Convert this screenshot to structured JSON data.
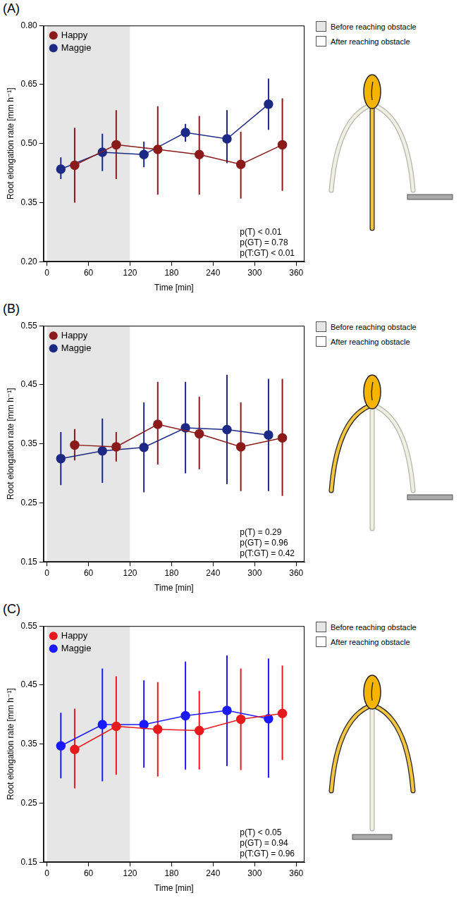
{
  "chart_data": [
    {
      "type": "line",
      "panel": "(A)",
      "x_label": "Time [min]",
      "y_label": "Root elongation rate [mm h⁻¹]",
      "xlim": [
        -5,
        372
      ],
      "xticks": [
        0,
        60,
        120,
        180,
        240,
        300,
        360
      ],
      "ylim": [
        0.2,
        0.8
      ],
      "yticks": [
        {
          "value": 0.2,
          "label": "0.20"
        },
        {
          "value": 0.35,
          "label": "0.35"
        },
        {
          "value": 0.5,
          "label": "0.50"
        },
        {
          "value": 0.65,
          "label": "0.65"
        },
        {
          "value": 0.8,
          "label": "0.80"
        }
      ],
      "grid": false,
      "legend": "upper left",
      "regions": [
        {
          "x": [
            0,
            120
          ],
          "label": "Before reaching obstacle",
          "color": "#e6e6e6"
        },
        {
          "x": [
            120,
            360
          ],
          "label": "After reaching obstacle",
          "color": "#ffffff"
        }
      ],
      "annotations": [
        "p(T) < 0.01",
        "p(GT) = 0.78",
        "p(T:GT) < 0.01"
      ],
      "series": [
        {
          "name": "Happy",
          "color": "#8b1a1a",
          "marker": "circle",
          "x": [
            40,
            100,
            160,
            220,
            280,
            340
          ],
          "values": [
            0.445,
            0.497,
            0.485,
            0.472,
            0.447,
            0.497
          ],
          "error_low": [
            0.35,
            0.41,
            0.37,
            0.37,
            0.36,
            0.38
          ],
          "error_high": [
            0.54,
            0.585,
            0.595,
            0.57,
            0.53,
            0.615
          ]
        },
        {
          "name": "Maggie",
          "color": "#1c2a85",
          "marker": "circle",
          "x": [
            20,
            80,
            140,
            200,
            260,
            320
          ],
          "values": [
            0.435,
            0.478,
            0.472,
            0.528,
            0.512,
            0.6
          ],
          "error_low": [
            0.41,
            0.43,
            0.44,
            0.505,
            0.45,
            0.535
          ],
          "error_high": [
            0.465,
            0.525,
            0.505,
            0.55,
            0.585,
            0.665
          ]
        }
      ]
    },
    {
      "type": "line",
      "panel": "(B)",
      "x_label": "Time [min]",
      "y_label": "Root elongation rate [mm h⁻¹]",
      "xlim": [
        -5,
        372
      ],
      "xticks": [
        0,
        60,
        120,
        180,
        240,
        300,
        360
      ],
      "ylim": [
        0.15,
        0.55
      ],
      "yticks": [
        {
          "value": 0.15,
          "label": "0.15"
        },
        0.25,
        0.35,
        0.45,
        0.55
      ],
      "grid": false,
      "legend": "upper left",
      "regions": [
        {
          "x": [
            0,
            120
          ],
          "label": "Before reaching obstacle",
          "color": "#e6e6e6"
        },
        {
          "x": [
            120,
            360
          ],
          "label": "After reaching obstacle",
          "color": "#ffffff"
        }
      ],
      "annotations": [
        "p(T) = 0.29",
        "p(GT) = 0.96",
        "p(T:GT) = 0.42"
      ],
      "series": [
        {
          "name": "Happy",
          "color": "#8b1a1a",
          "marker": "circle",
          "x": [
            40,
            100,
            160,
            220,
            280,
            340
          ],
          "values": [
            0.348,
            0.345,
            0.383,
            0.367,
            0.345,
            0.36
          ],
          "error_low": [
            0.322,
            0.32,
            0.315,
            0.307,
            0.27,
            0.262
          ],
          "error_high": [
            0.375,
            0.37,
            0.455,
            0.43,
            0.42,
            0.46
          ]
        },
        {
          "name": "Maggie",
          "color": "#1c2a85",
          "marker": "circle",
          "x": [
            20,
            80,
            140,
            200,
            260,
            320
          ],
          "values": [
            0.325,
            0.338,
            0.344,
            0.377,
            0.374,
            0.365
          ],
          "error_low": [
            0.28,
            0.284,
            0.268,
            0.3,
            0.282,
            0.27
          ],
          "error_high": [
            0.37,
            0.393,
            0.42,
            0.455,
            0.467,
            0.46
          ]
        }
      ]
    },
    {
      "type": "line",
      "panel": "(C)",
      "x_label": "Time [min]",
      "y_label": "Root elongation rate [mm h⁻¹]",
      "xlim": [
        -5,
        372
      ],
      "xticks": [
        0,
        60,
        120,
        180,
        240,
        300,
        360
      ],
      "ylim": [
        0.15,
        0.55
      ],
      "yticks": [
        {
          "value": 0.15,
          "label": "0.15"
        },
        0.25,
        0.35,
        0.45,
        0.55
      ],
      "grid": false,
      "legend": "upper left",
      "regions": [
        {
          "x": [
            0,
            120
          ],
          "label": "Before reaching obstacle",
          "color": "#e6e6e6"
        },
        {
          "x": [
            120,
            360
          ],
          "label": "After reaching obstacle",
          "color": "#ffffff"
        }
      ],
      "annotations": [
        "p(T) < 0.05",
        "p(GT) = 0.94",
        "p(T:GT) = 0.96"
      ],
      "series": [
        {
          "name": "Happy",
          "color": "#e8191c",
          "marker": "circle",
          "x": [
            40,
            100,
            160,
            220,
            280,
            340
          ],
          "values": [
            0.341,
            0.38,
            0.375,
            0.373,
            0.392,
            0.402
          ],
          "error_low": [
            0.275,
            0.298,
            0.295,
            0.307,
            0.306,
            0.323
          ],
          "error_high": [
            0.41,
            0.465,
            0.455,
            0.44,
            0.478,
            0.483
          ]
        },
        {
          "name": "Maggie",
          "color": "#1a1aff",
          "marker": "circle",
          "x": [
            20,
            80,
            140,
            200,
            260,
            320
          ],
          "values": [
            0.347,
            0.383,
            0.383,
            0.398,
            0.407,
            0.393
          ],
          "error_low": [
            0.292,
            0.287,
            0.31,
            0.307,
            0.313,
            0.293
          ],
          "error_high": [
            0.403,
            0.478,
            0.458,
            0.49,
            0.5,
            0.495
          ]
        }
      ]
    }
  ]
}
